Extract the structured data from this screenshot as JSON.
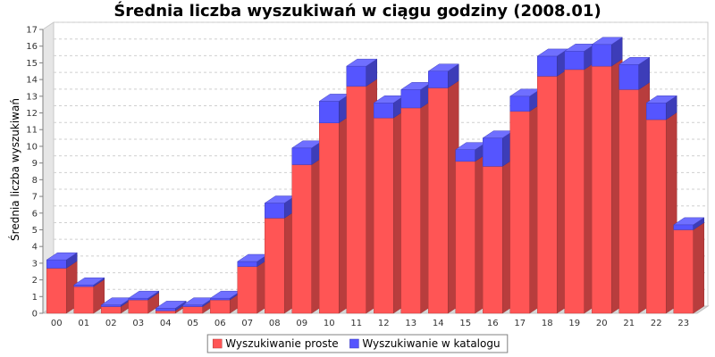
{
  "chart_data": {
    "type": "bar",
    "stacked": true,
    "three_d": true,
    "title": "Średnia liczba wyszukiwań w ciągu godziny (2008.01)",
    "xlabel": "",
    "ylabel": "Średnia liczba wyszukiwań",
    "ylim": [
      0,
      17
    ],
    "yticks": [
      0,
      1,
      2,
      3,
      4,
      5,
      6,
      7,
      8,
      9,
      10,
      11,
      12,
      13,
      14,
      15,
      16,
      17
    ],
    "grid": true,
    "legend_position": "bottom",
    "categories": [
      "00",
      "01",
      "02",
      "03",
      "04",
      "05",
      "06",
      "07",
      "08",
      "09",
      "10",
      "11",
      "12",
      "13",
      "14",
      "15",
      "16",
      "17",
      "18",
      "19",
      "20",
      "21",
      "22",
      "23"
    ],
    "series": [
      {
        "name": "Wyszukiwanie proste",
        "color": "#ff5555",
        "values": [
          2.7,
          1.6,
          0.4,
          0.8,
          0.15,
          0.4,
          0.8,
          2.8,
          5.7,
          8.9,
          11.4,
          13.6,
          11.7,
          12.3,
          13.5,
          9.1,
          8.8,
          12.1,
          14.2,
          14.6,
          14.8,
          13.4,
          11.6,
          5.0
        ]
      },
      {
        "name": "Wyszukiwanie w katalogu",
        "color": "#5555ff",
        "values": [
          0.5,
          0.1,
          0.1,
          0.1,
          0.15,
          0.1,
          0.1,
          0.3,
          0.9,
          1.0,
          1.3,
          1.2,
          0.9,
          1.1,
          1.0,
          0.7,
          1.7,
          0.9,
          1.2,
          1.1,
          1.3,
          1.5,
          1.0,
          0.3
        ]
      }
    ]
  }
}
